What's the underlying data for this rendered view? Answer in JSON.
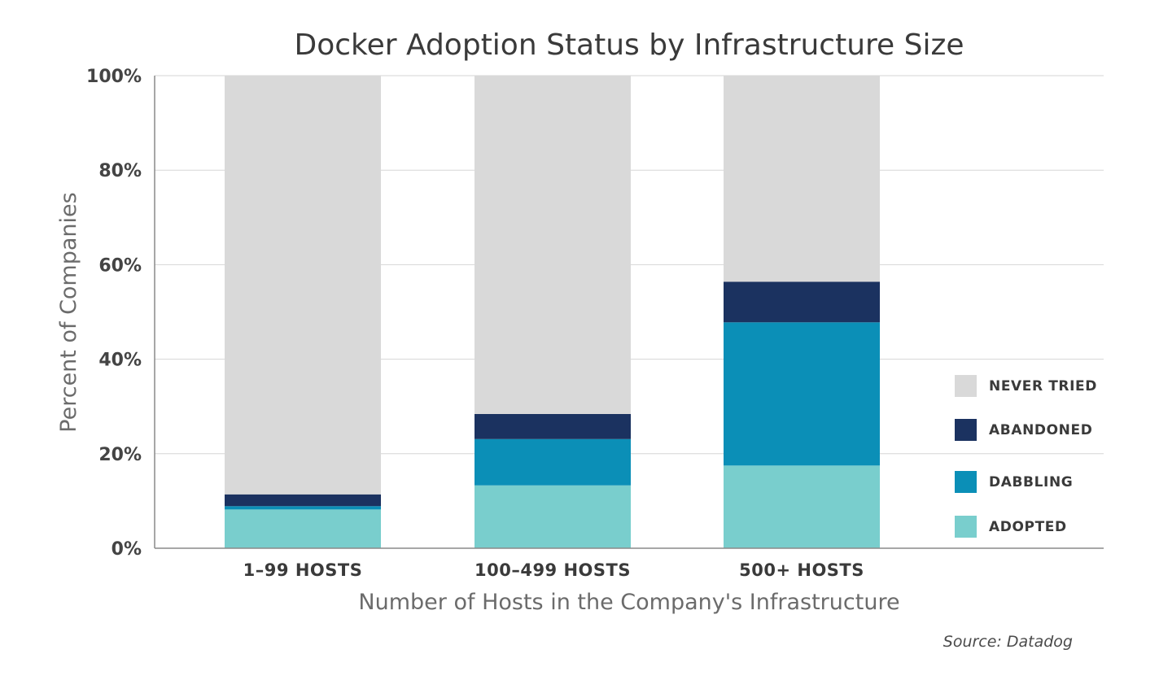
{
  "chart_data": {
    "type": "bar",
    "stacked": true,
    "title": "Docker Adoption Status by Infrastructure Size",
    "xlabel": "Number of Hosts in the Company's Infrastructure",
    "ylabel": "Percent of Companies",
    "ylim": [
      0,
      100
    ],
    "yticks": [
      0,
      20,
      40,
      60,
      80,
      100
    ],
    "ytick_labels": [
      "0%",
      "20%",
      "40%",
      "60%",
      "80%",
      "100%"
    ],
    "grid": true,
    "legend_position": "right",
    "categories": [
      "1–99 HOSTS",
      "100–499 HOSTS",
      "500+ HOSTS"
    ],
    "series": [
      {
        "name": "ADOPTED",
        "color": "#79cecd",
        "values": [
          8.2,
          13.3,
          17.5
        ]
      },
      {
        "name": "DABBLING",
        "color": "#0b8fb7",
        "values": [
          0.7,
          9.8,
          30.3
        ]
      },
      {
        "name": "ABANDONED",
        "color": "#1b3260",
        "values": [
          2.5,
          5.3,
          8.6
        ]
      },
      {
        "name": "NEVER TRIED",
        "color": "#d9d9d9",
        "values": [
          88.6,
          71.6,
          43.6
        ]
      }
    ],
    "legend_order": [
      "NEVER TRIED",
      "ABANDONED",
      "DABBLING",
      "ADOPTED"
    ],
    "source": "Source: Datadog"
  }
}
